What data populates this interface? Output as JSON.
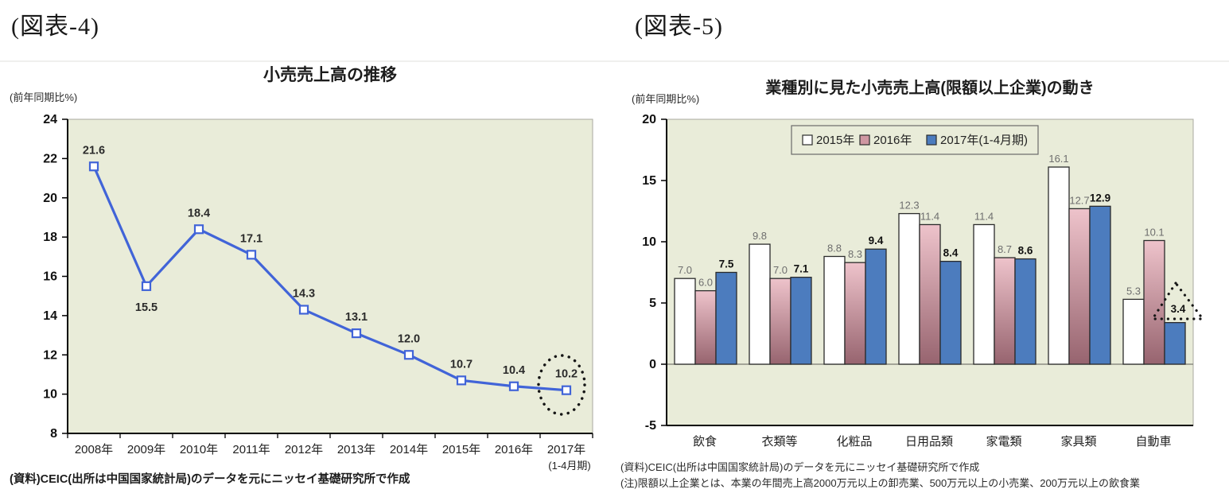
{
  "page": {
    "background": "#ffffff"
  },
  "figure4": {
    "caption": "(図表-4)",
    "title": "小売売上高の推移",
    "unit_label": "(前年同期比%)",
    "source": "(資料)CEIC(出所は中国国家統計局)のデータを元にニッセイ基礎研究所で作成"
  },
  "figure5": {
    "caption": "(図表-5)",
    "title": "業種別に見た小売売上高(限額以上企業)の動き",
    "unit_label": "(前年同期比%)",
    "source": "(資料)CEIC(出所は中国国家統計局)のデータを元にニッセイ基礎研究所で作成",
    "note": "(注)限額以上企業とは、本業の年間売上高2000万元以上の卸売業、500万元以上の小売業、200万元以上の飲食業"
  },
  "chart_data": [
    {
      "type": "line",
      "title": "小売売上高の推移",
      "ylabel": "(前年同期比%)",
      "categories": [
        "2008年",
        "2009年",
        "2010年",
        "2011年",
        "2012年",
        "2013年",
        "2014年",
        "2015年",
        "2016年",
        "2017年"
      ],
      "last_category_sublabel": "(1-4月期)",
      "values": [
        21.6,
        15.5,
        18.4,
        17.1,
        14.3,
        13.1,
        12.0,
        10.7,
        10.4,
        10.2
      ],
      "ylim": [
        8,
        24
      ],
      "ytick_step": 2,
      "grid": false,
      "legend_position": "none",
      "plot_bg": "#e9ecd9",
      "line_color": "#4164d8",
      "marker": "open-square",
      "annotation": {
        "shape": "dotted-ellipse",
        "target_category": "2017年",
        "target_value": 10.2
      }
    },
    {
      "type": "bar",
      "title": "業種別に見た小売売上高(限額以上企業)の動き",
      "ylabel": "(前年同期比%)",
      "categories": [
        "飲食",
        "衣類等",
        "化粧品",
        "日用品類",
        "家電類",
        "家具類",
        "自動車"
      ],
      "series": [
        {
          "name": "2015年",
          "values": [
            7.0,
            9.8,
            8.8,
            12.3,
            11.4,
            16.1,
            5.3
          ],
          "fill": "#ffffff"
        },
        {
          "name": "2016年",
          "values": [
            6.0,
            7.0,
            8.3,
            11.4,
            8.7,
            12.7,
            10.1
          ],
          "fill_top": "#eec3cb",
          "fill_bottom": "#97646f"
        },
        {
          "name": "2017年(1-4月期)",
          "values": [
            7.5,
            7.1,
            9.4,
            8.4,
            8.6,
            12.9,
            3.4
          ],
          "fill": "#4c7cbe"
        }
      ],
      "ylim": [
        -5,
        20
      ],
      "ytick_step": 5,
      "grid": false,
      "legend_position": "top-center",
      "plot_bg": "#e9ecd9",
      "annotation": {
        "shape": "dotted-triangle",
        "target_category": "自動車",
        "target_series": "2017年(1-4月期)",
        "target_value": 3.4
      }
    }
  ]
}
